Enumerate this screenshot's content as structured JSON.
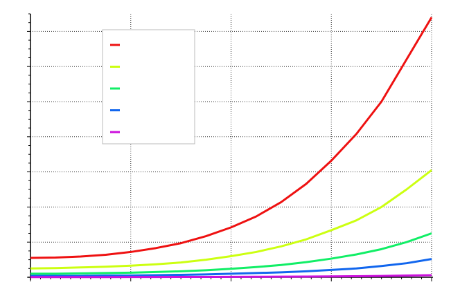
{
  "chart_data": {
    "type": "line",
    "title": "",
    "xlabel": "",
    "ylabel": "",
    "grid": true,
    "legend_placement": "top-left",
    "xlim": [
      0,
      4
    ],
    "ylim": [
      0,
      7.5
    ],
    "x": [
      0,
      0.25,
      0.5,
      0.75,
      1.0,
      1.25,
      1.5,
      1.75,
      2.0,
      2.25,
      2.5,
      2.75,
      3.0,
      3.25,
      3.5,
      3.75,
      4.0
    ],
    "series": [
      {
        "color": "#ee1111",
        "values": [
          0.55,
          0.56,
          0.59,
          0.64,
          0.72,
          0.83,
          0.97,
          1.17,
          1.42,
          1.73,
          2.14,
          2.66,
          3.32,
          4.08,
          5.0,
          6.2,
          7.4
        ]
      },
      {
        "color": "#ccff11",
        "values": [
          0.25,
          0.26,
          0.28,
          0.3,
          0.33,
          0.37,
          0.42,
          0.5,
          0.6,
          0.72,
          0.88,
          1.08,
          1.34,
          1.62,
          2.0,
          2.5,
          3.05
        ]
      },
      {
        "color": "#11ee66",
        "values": [
          0.1,
          0.1,
          0.11,
          0.12,
          0.13,
          0.15,
          0.17,
          0.2,
          0.24,
          0.29,
          0.35,
          0.43,
          0.53,
          0.65,
          0.8,
          1.0,
          1.25
        ]
      },
      {
        "color": "#1166ee",
        "values": [
          0.04,
          0.04,
          0.04,
          0.05,
          0.05,
          0.06,
          0.07,
          0.08,
          0.1,
          0.12,
          0.14,
          0.17,
          0.21,
          0.25,
          0.32,
          0.4,
          0.52
        ]
      },
      {
        "color": "#cc11dd",
        "values": [
          0.005,
          0.005,
          0.006,
          0.006,
          0.007,
          0.008,
          0.009,
          0.01,
          0.012,
          0.014,
          0.017,
          0.02,
          0.024,
          0.03,
          0.038,
          0.048,
          0.06
        ]
      }
    ]
  }
}
